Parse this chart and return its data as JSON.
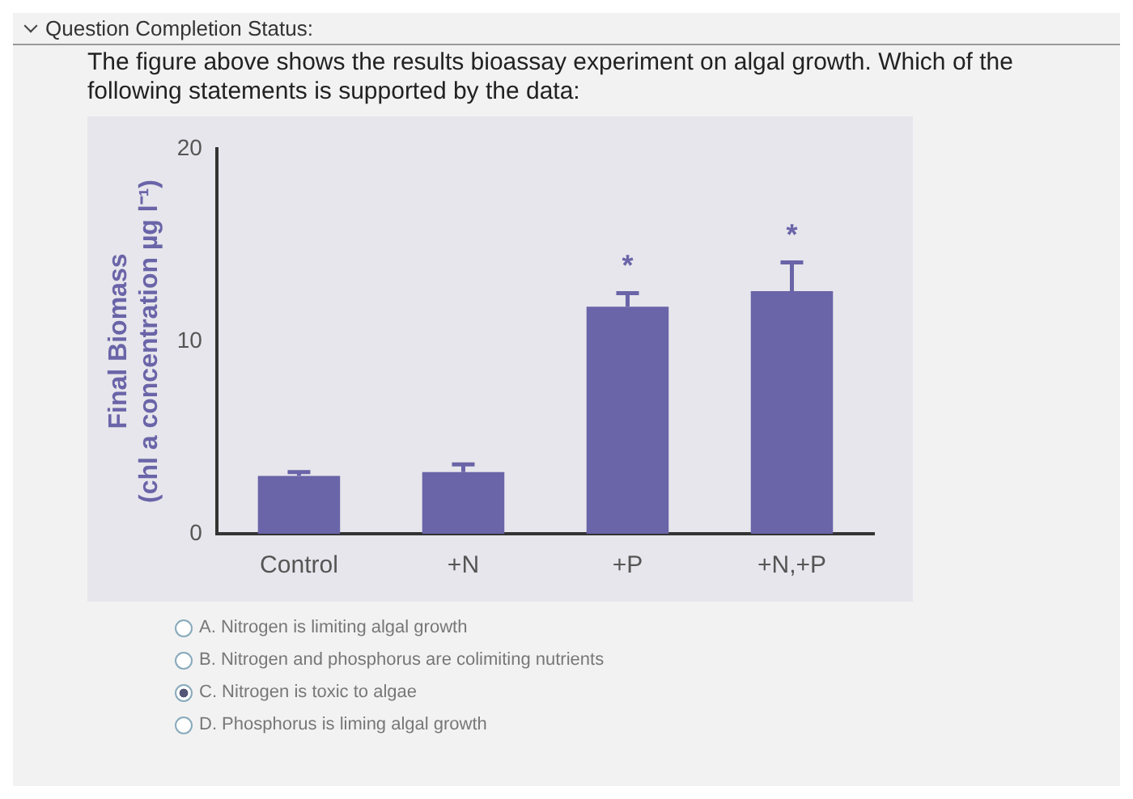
{
  "chart_data": {
    "type": "bar",
    "title": "The figure above shows the results bioassay experiment on algal growth. Which of the following statements is supported by the data:",
    "ylabel": "Final Biomass\n(chl a concentration µg l⁻¹)",
    "categories": [
      "Control",
      "+N",
      "+P",
      "+N,+P"
    ],
    "values": [
      3.0,
      3.2,
      11.8,
      12.6
    ],
    "errors": [
      0.2,
      0.4,
      0.7,
      1.5
    ],
    "color": "#6a64a8",
    "ylim": [
      0,
      20
    ],
    "yticks": [
      0,
      10,
      20
    ],
    "annotations": [
      "Question Completion Status:",
      {
        "text": "*",
        "x": "+P",
        "y": 12.5
      },
      {
        "text": "*",
        "x": "+N,+P",
        "y": 14.1
      },
      "A. Nitrogen is limiting algal growth",
      "B. Nitrogen and phosphorus are colimiting nutrients",
      "C. Nitrogen is toxic to algae",
      "D. Phosphorus is liming algal growth"
    ]
  }
}
